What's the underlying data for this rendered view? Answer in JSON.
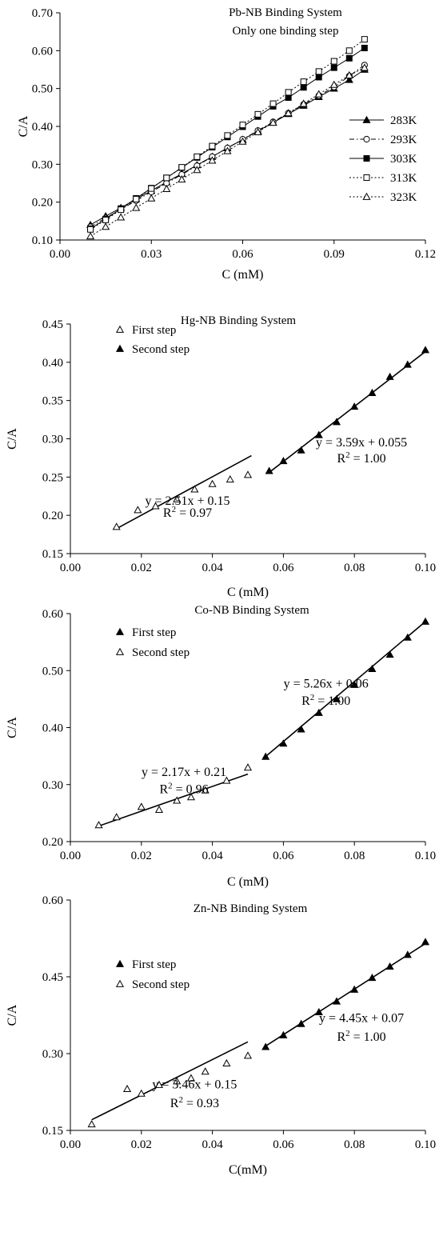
{
  "chart_data": [
    {
      "type": "line",
      "title": "Pb-NB Binding System",
      "subtitle": "Only one binding step",
      "xlabel": "C (mM)",
      "ylabel": "C/A",
      "xlim": [
        0,
        0.12
      ],
      "ylim": [
        0.1,
        0.7
      ],
      "xticks": [
        "0.00",
        "0.03",
        "0.06",
        "0.09",
        "0.12"
      ],
      "yticks": [
        "0.10",
        "0.20",
        "0.30",
        "0.40",
        "0.50",
        "0.60",
        "0.70"
      ],
      "xtick_values": [
        0,
        0.03,
        0.06,
        0.09,
        0.12
      ],
      "ytick_values": [
        0.1,
        0.2,
        0.3,
        0.4,
        0.5,
        0.6,
        0.7
      ],
      "legend_position": "right",
      "x": [
        0.01,
        0.015,
        0.02,
        0.025,
        0.03,
        0.035,
        0.04,
        0.045,
        0.05,
        0.055,
        0.06,
        0.065,
        0.07,
        0.075,
        0.08,
        0.085,
        0.09,
        0.095,
        0.1
      ],
      "series": [
        {
          "name": "283K",
          "marker": "filled-triangle",
          "dash": "solid",
          "values": [
            0.14,
            0.163,
            0.185,
            0.208,
            0.23,
            0.253,
            0.275,
            0.298,
            0.32,
            0.343,
            0.365,
            0.388,
            0.41,
            0.433,
            0.455,
            0.478,
            0.5,
            0.523,
            0.55
          ]
        },
        {
          "name": "293K",
          "marker": "open-circle",
          "dash": "dashdot",
          "values": [
            0.135,
            0.158,
            0.181,
            0.204,
            0.227,
            0.25,
            0.273,
            0.296,
            0.32,
            0.343,
            0.366,
            0.389,
            0.412,
            0.435,
            0.458,
            0.481,
            0.504,
            0.533,
            0.562
          ]
        },
        {
          "name": "303K",
          "marker": "filled-square",
          "dash": "solid",
          "values": [
            0.13,
            0.155,
            0.183,
            0.21,
            0.237,
            0.264,
            0.291,
            0.318,
            0.345,
            0.372,
            0.399,
            0.426,
            0.453,
            0.476,
            0.503,
            0.53,
            0.555,
            0.58,
            0.607
          ]
        },
        {
          "name": "313K",
          "marker": "open-square",
          "dash": "dotted",
          "values": [
            0.128,
            0.153,
            0.18,
            0.208,
            0.236,
            0.264,
            0.292,
            0.32,
            0.348,
            0.376,
            0.404,
            0.432,
            0.46,
            0.49,
            0.518,
            0.545,
            0.572,
            0.6,
            0.63
          ]
        },
        {
          "name": "323K",
          "marker": "open-triangle",
          "dash": "dotted",
          "values": [
            0.11,
            0.135,
            0.16,
            0.185,
            0.21,
            0.235,
            0.26,
            0.285,
            0.31,
            0.335,
            0.36,
            0.385,
            0.41,
            0.435,
            0.46,
            0.485,
            0.51,
            0.535,
            0.555
          ]
        }
      ]
    },
    {
      "type": "scatter",
      "title": "Hg-NB Binding System",
      "xlabel": "C (mM)",
      "ylabel": "C/A",
      "xlim": [
        0,
        0.1
      ],
      "ylim": [
        0.15,
        0.45
      ],
      "xticks": [
        "0.00",
        "0.02",
        "0.04",
        "0.06",
        "0.08",
        "0.10"
      ],
      "yticks": [
        "0.15",
        "0.20",
        "0.25",
        "0.30",
        "0.35",
        "0.40",
        "0.45"
      ],
      "xtick_values": [
        0,
        0.02,
        0.04,
        0.06,
        0.08,
        0.1
      ],
      "ytick_values": [
        0.15,
        0.2,
        0.25,
        0.3,
        0.35,
        0.4,
        0.45
      ],
      "legend_position": "top-left",
      "series": [
        {
          "name": "First step",
          "marker": "open-triangle",
          "x": [
            0.013,
            0.019,
            0.024,
            0.03,
            0.035,
            0.04,
            0.045,
            0.05
          ],
          "y": [
            0.185,
            0.207,
            0.212,
            0.221,
            0.234,
            0.241,
            0.247,
            0.253
          ],
          "fit": {
            "slope": 2.51,
            "intercept": 0.15,
            "x_range": [
              0.013,
              0.051
            ],
            "equation": "y = 2.51x + 0.15",
            "r2_prefix": "R",
            "r2_sup": "2",
            "r2_value": " = 0.97"
          }
        },
        {
          "name": "Second step",
          "marker": "filled-triangle",
          "x": [
            0.056,
            0.06,
            0.065,
            0.07,
            0.075,
            0.08,
            0.085,
            0.09,
            0.095,
            0.1
          ],
          "y": [
            0.258,
            0.271,
            0.285,
            0.305,
            0.322,
            0.342,
            0.36,
            0.381,
            0.397,
            0.416
          ],
          "fit": {
            "slope": 3.59,
            "intercept": 0.055,
            "x_range": [
              0.056,
              0.1
            ],
            "equation": "y = 3.59x + 0.055",
            "r2_prefix": "R",
            "r2_sup": "2",
            "r2_value": " = 1.00"
          }
        }
      ]
    },
    {
      "type": "scatter",
      "title": "Co-NB Binding System",
      "xlabel": "C (mM)",
      "ylabel": "C/A",
      "xlim": [
        0,
        0.1
      ],
      "ylim": [
        0.2,
        0.6
      ],
      "xticks": [
        "0.00",
        "0.02",
        "0.04",
        "0.06",
        "0.08",
        "0.10"
      ],
      "yticks": [
        "0.20",
        "0.30",
        "0.40",
        "0.50",
        "0.60"
      ],
      "xtick_values": [
        0,
        0.02,
        0.04,
        0.06,
        0.08,
        0.1
      ],
      "ytick_values": [
        0.2,
        0.3,
        0.4,
        0.5,
        0.6
      ],
      "legend_position": "top-left",
      "series": [
        {
          "name": "First step",
          "marker": "filled-triangle",
          "x": [
            0.055,
            0.06,
            0.065,
            0.07,
            0.075,
            0.08,
            0.085,
            0.09,
            0.095,
            0.1
          ],
          "y": [
            0.349,
            0.372,
            0.397,
            0.426,
            0.45,
            0.475,
            0.503,
            0.528,
            0.558,
            0.586
          ],
          "fit": {
            "slope": 5.26,
            "intercept": 0.06,
            "x_range": [
              0.055,
              0.1
            ],
            "equation": "y = 5.26x + 0.06",
            "r2_prefix": "R",
            "r2_sup": "2",
            "r2_value": " = 1.00"
          }
        },
        {
          "name": "Second step",
          "marker": "open-triangle",
          "x": [
            0.008,
            0.013,
            0.02,
            0.025,
            0.03,
            0.034,
            0.038,
            0.044,
            0.05
          ],
          "y": [
            0.229,
            0.243,
            0.261,
            0.256,
            0.272,
            0.278,
            0.29,
            0.307,
            0.33
          ],
          "fit": {
            "slope": 2.17,
            "intercept": 0.21,
            "x_range": [
              0.008,
              0.05
            ],
            "equation": "y = 2.17x + 0.21",
            "r2_prefix": "R",
            "r2_sup": "2",
            "r2_value": " = 0.96"
          }
        }
      ]
    },
    {
      "type": "scatter",
      "title": "Zn-NB Binding System",
      "xlabel": "C(mM)",
      "ylabel": "C/A",
      "xlim": [
        0,
        0.1
      ],
      "ylim": [
        0.15,
        0.6
      ],
      "xticks": [
        "0.00",
        "0.02",
        "0.04",
        "0.06",
        "0.08",
        "0.10"
      ],
      "yticks": [
        "0.15",
        "0.30",
        "0.45",
        "0.60"
      ],
      "xtick_values": [
        0,
        0.02,
        0.04,
        0.06,
        0.08,
        0.1
      ],
      "ytick_values": [
        0.15,
        0.3,
        0.45,
        0.6
      ],
      "legend_position": "top-left",
      "series": [
        {
          "name": "First step",
          "marker": "filled-triangle",
          "x": [
            0.055,
            0.06,
            0.065,
            0.07,
            0.075,
            0.08,
            0.085,
            0.09,
            0.095,
            0.1
          ],
          "y": [
            0.313,
            0.336,
            0.358,
            0.381,
            0.402,
            0.425,
            0.448,
            0.47,
            0.493,
            0.518
          ],
          "fit": {
            "slope": 4.45,
            "intercept": 0.07,
            "x_range": [
              0.055,
              0.1
            ],
            "equation": "y = 4.45x + 0.07",
            "r2_prefix": "R",
            "r2_sup": "2",
            "r2_value": " = 1.00"
          }
        },
        {
          "name": "Second step",
          "marker": "open-triangle",
          "x": [
            0.006,
            0.016,
            0.02,
            0.025,
            0.03,
            0.034,
            0.038,
            0.044,
            0.05
          ],
          "y": [
            0.162,
            0.231,
            0.222,
            0.239,
            0.246,
            0.252,
            0.265,
            0.281,
            0.296
          ],
          "fit": {
            "slope": 3.46,
            "intercept": 0.15,
            "x_range": [
              0.006,
              0.05
            ],
            "equation": "y = 3.46x + 0.15",
            "r2_prefix": "R",
            "r2_sup": "2",
            "r2_value": " = 0.93"
          }
        }
      ]
    }
  ]
}
